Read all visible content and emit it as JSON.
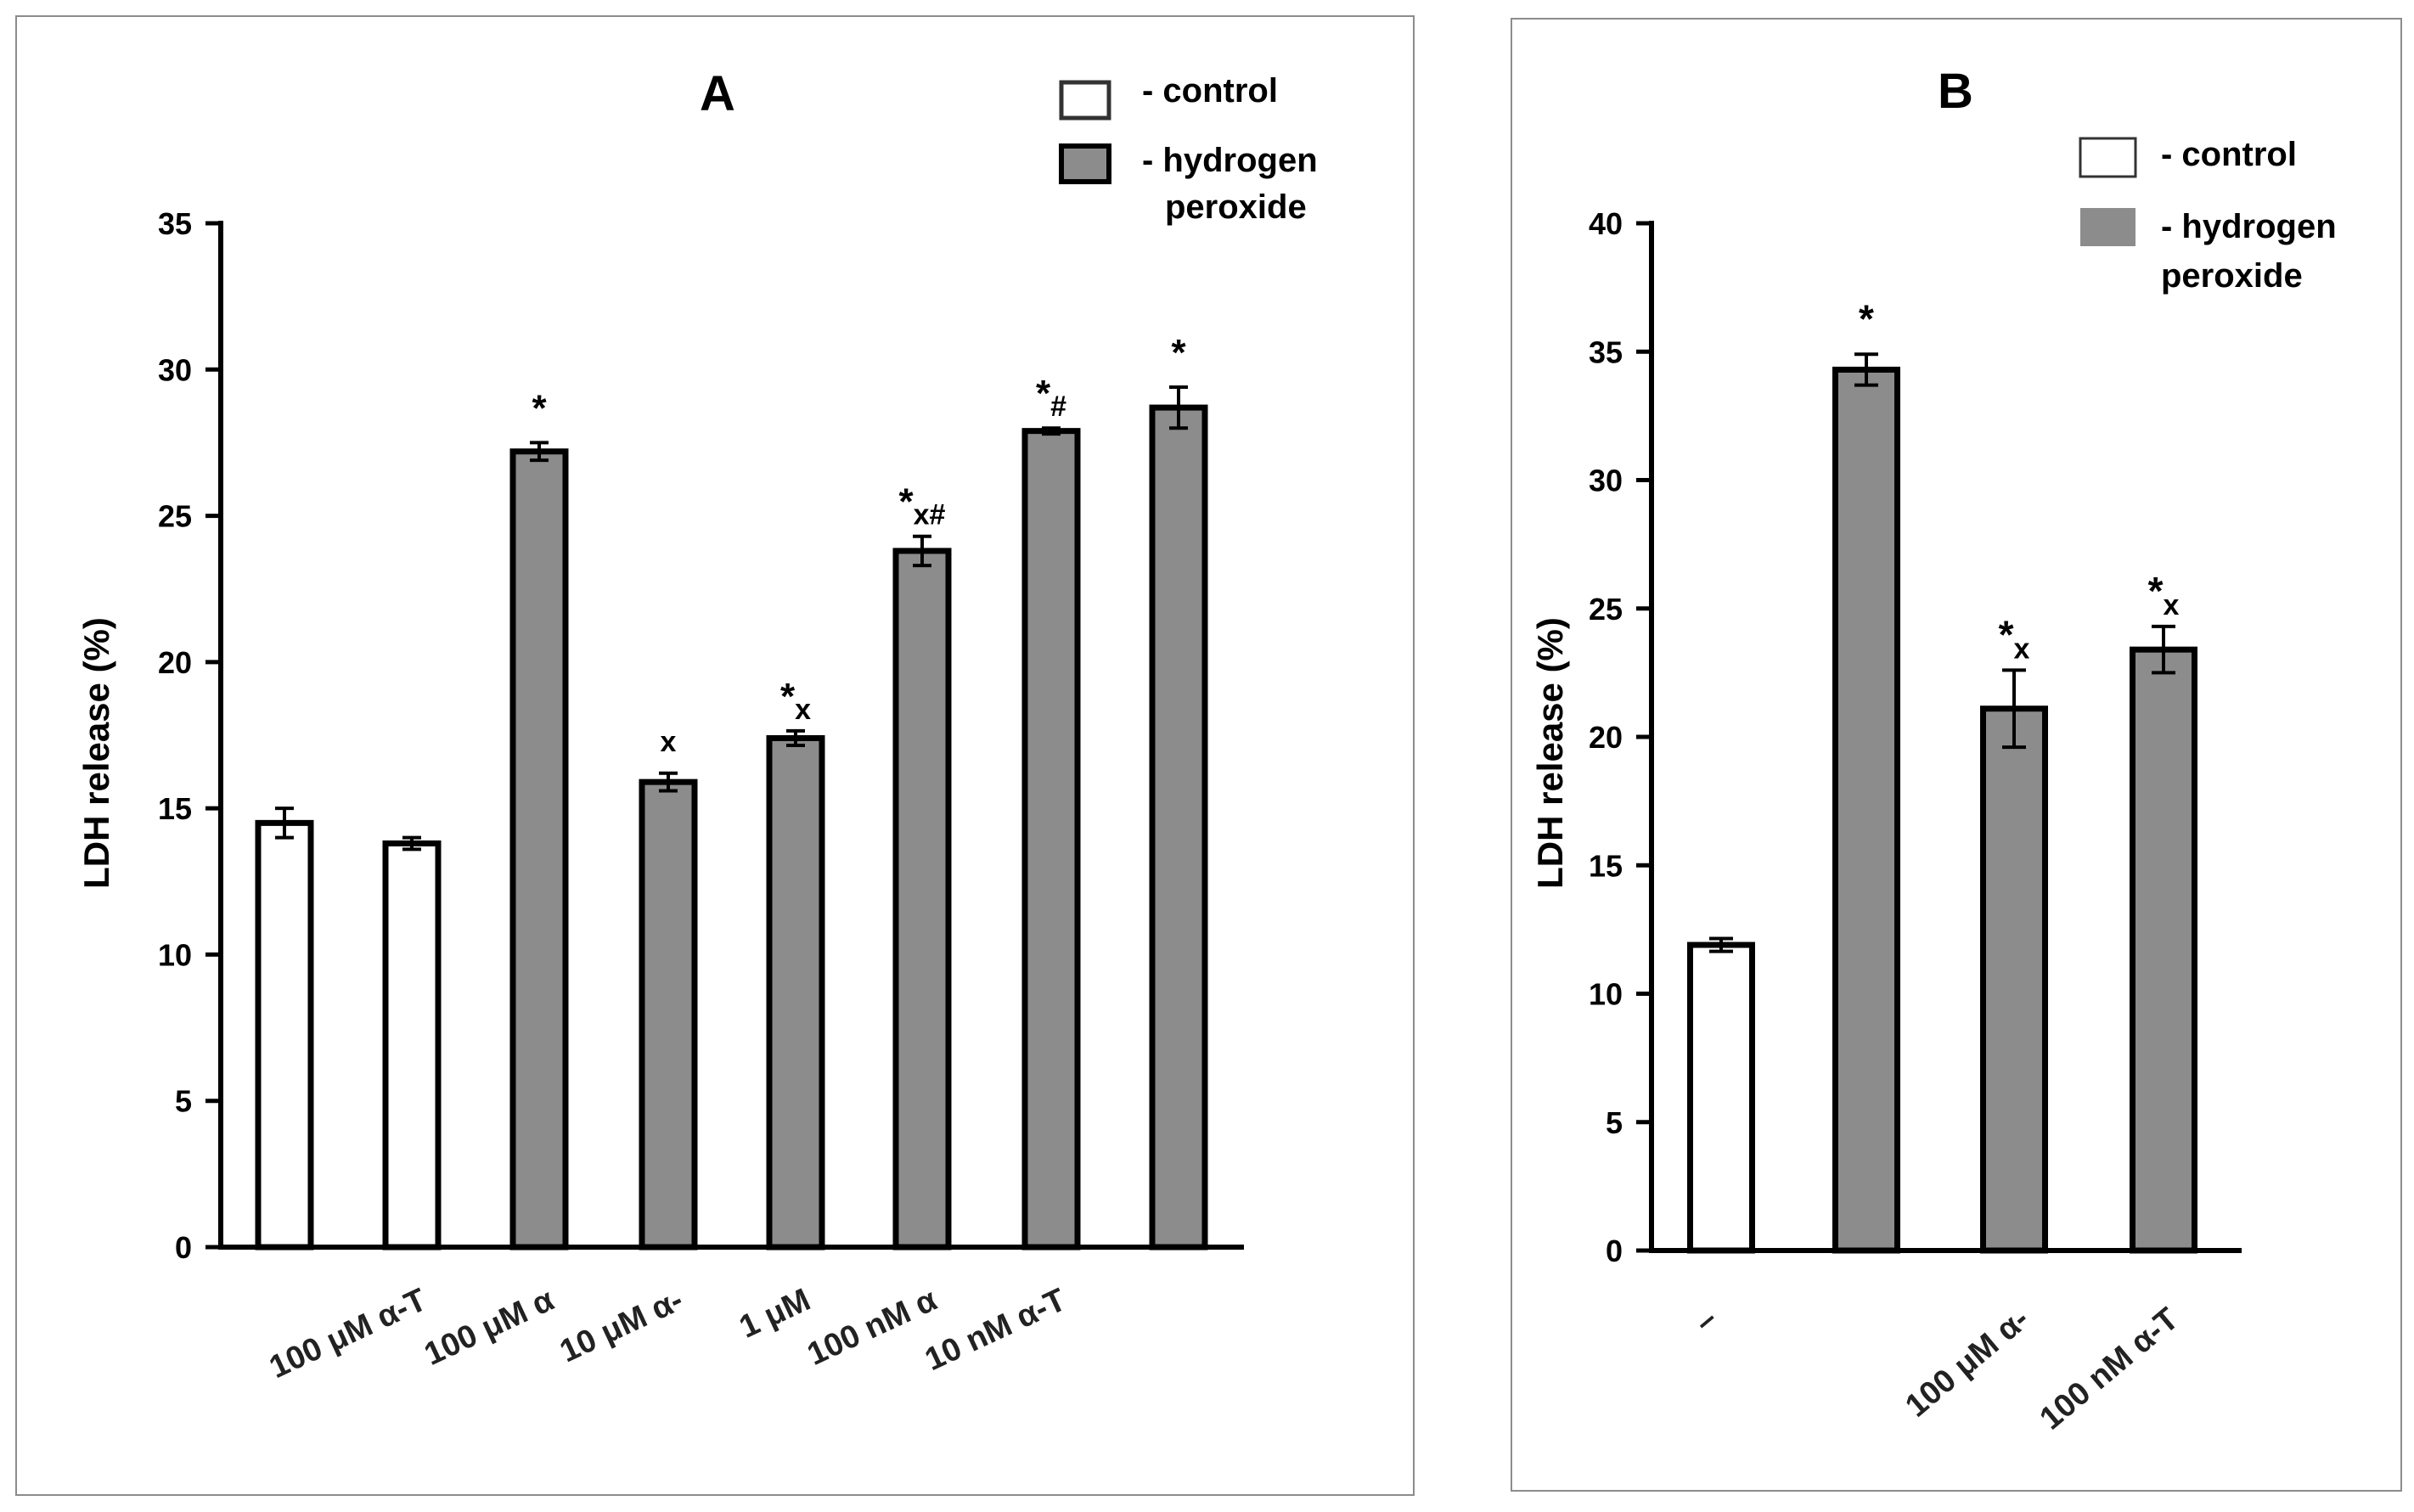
{
  "colors": {
    "control": "#ffffff",
    "treated": "#8c8c8c",
    "axis": "#000000",
    "frame": "#8c8c8c"
  },
  "chart_data": [
    {
      "type": "bar",
      "title": "A",
      "ylabel": "LDH release (%)",
      "xlabel": "",
      "ylim": [
        0,
        35
      ],
      "yticks": [
        0,
        5,
        10,
        15,
        20,
        25,
        30,
        35
      ],
      "legend": {
        "position": "top-right",
        "entries": [
          "- control",
          "- hydrogen",
          "peroxide"
        ]
      },
      "categories": [
        "",
        "100 μM α-T",
        "100 μM α",
        "10 μM α-",
        "1 μM",
        "100 nM α",
        "10 nM α-T",
        ""
      ],
      "bars": [
        {
          "group": "control",
          "value": 14.5,
          "error": 0.5,
          "label": ""
        },
        {
          "group": "control",
          "value": 13.8,
          "error": 0.2,
          "label": ""
        },
        {
          "group": "hydrogen peroxide",
          "value": 27.2,
          "error": 0.3,
          "label": "*"
        },
        {
          "group": "hydrogen peroxide",
          "value": 15.9,
          "error": 0.3,
          "label": "x"
        },
        {
          "group": "hydrogen peroxide",
          "value": 17.4,
          "error": 0.25,
          "label": "*x"
        },
        {
          "group": "hydrogen peroxide",
          "value": 23.8,
          "error": 0.5,
          "label": "*x#"
        },
        {
          "group": "hydrogen peroxide",
          "value": 27.9,
          "error": 0.1,
          "label": "*#"
        },
        {
          "group": "hydrogen peroxide",
          "value": 28.7,
          "error": 0.7,
          "label": "*"
        }
      ]
    },
    {
      "type": "bar",
      "title": "B",
      "ylabel": "LDH release (%)",
      "xlabel": "",
      "ylim": [
        0,
        40
      ],
      "yticks": [
        0,
        5,
        10,
        15,
        20,
        25,
        30,
        35,
        40
      ],
      "legend": {
        "position": "top-right",
        "entries": [
          "- control",
          "- hydrogen",
          "peroxide"
        ]
      },
      "categories": [
        "–",
        "",
        "100 μM α-",
        "100 nM α-T"
      ],
      "bars": [
        {
          "group": "control",
          "value": 11.9,
          "error": 0.25,
          "label": ""
        },
        {
          "group": "hydrogen peroxide",
          "value": 34.3,
          "error": 0.6,
          "label": "*"
        },
        {
          "group": "hydrogen peroxide",
          "value": 21.1,
          "error": 1.5,
          "label": "*x"
        },
        {
          "group": "hydrogen peroxide",
          "value": 23.4,
          "error": 0.9,
          "label": "*x"
        }
      ]
    }
  ]
}
